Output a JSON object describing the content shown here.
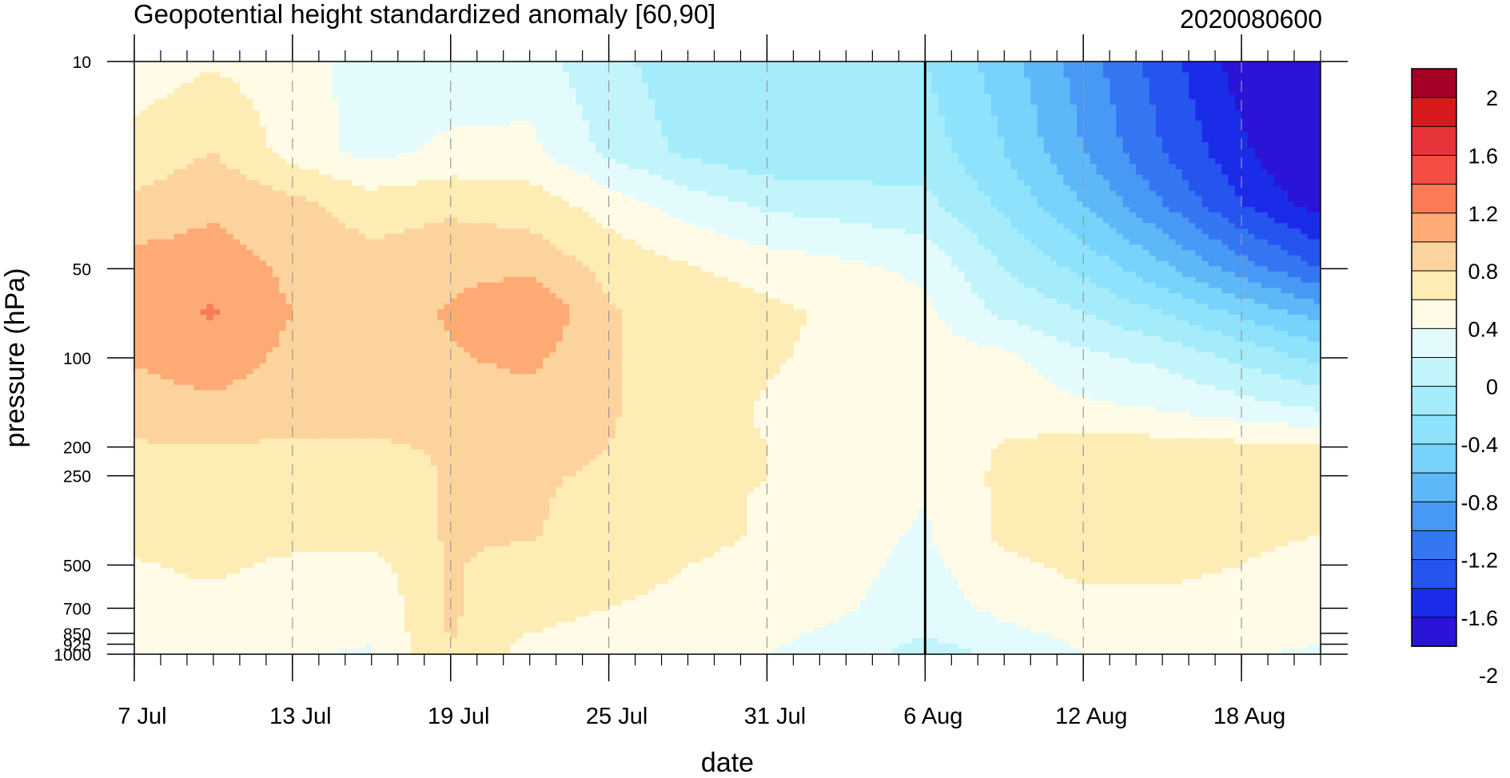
{
  "chart_data": {
    "type": "heatmap",
    "title": "Geopotential height standardized anomaly [60,90]",
    "init_label": "2020080600",
    "xlabel": "date",
    "ylabel": "pressure (hPa)",
    "x_tick_labels": [
      "7 Jul",
      "13 Jul",
      "19 Jul",
      "25 Jul",
      "31 Jul",
      "6 Aug",
      "12 Aug",
      "18 Aug"
    ],
    "x_range": [
      "7 Jul",
      "21 Aug"
    ],
    "y_tick_labels": [
      "10",
      "50",
      "100",
      "200",
      "250",
      "500",
      "700",
      "850",
      "925",
      "1000"
    ],
    "y_scale": "log",
    "y_range": [
      1000,
      10
    ],
    "vertical_line": "6 Aug",
    "colorbar": {
      "labels": [
        "2",
        "1.6",
        "1.2",
        "0.8",
        "0.4",
        "0",
        "-0.4",
        "-0.8",
        "-1.2",
        "-1.6",
        "-2"
      ],
      "colors": [
        "#a50026",
        "#d7191c",
        "#e8333a",
        "#f54c44",
        "#fb7b56",
        "#fdaa74",
        "#fdd39d",
        "#fdecb4",
        "#fffbe6",
        "#e3fbfd",
        "#c2f4fb",
        "#a4ecfb",
        "#8ee2fc",
        "#77d2fc",
        "#5eb8f8",
        "#4898f5",
        "#3576f2",
        "#2554ee",
        "#1b2ce8",
        "#2a14d6"
      ]
    },
    "levels": [
      -2.2,
      -2.0,
      -1.8,
      -1.6,
      -1.4,
      -1.2,
      -1.0,
      -0.8,
      -0.6,
      -0.4,
      -0.2,
      0,
      0.2,
      0.4,
      0.6,
      0.8
    ],
    "fill_colors": [
      "#2a14d6",
      "#1b2ce8",
      "#2554ee",
      "#3576f2",
      "#4898f5",
      "#5eb8f8",
      "#77d2fc",
      "#8ee2fc",
      "#a4ecfb",
      "#c2f4fb",
      "#e3fbfd",
      "#fffbe6",
      "#fdecb4",
      "#fdd39d",
      "#fdaa74",
      "#fb7b56"
    ],
    "grid": {
      "times": [
        "7 Jul",
        "10 Jul",
        "13 Jul",
        "16 Jul",
        "19 Jul",
        "22 Jul",
        "25 Jul",
        "28 Jul",
        "31 Jul",
        "3 Aug",
        "6 Aug",
        "9 Aug",
        "12 Aug",
        "15 Aug",
        "18 Aug",
        "21 Aug"
      ],
      "pressures": [
        10,
        20,
        30,
        50,
        70,
        100,
        150,
        200,
        250,
        300,
        400,
        500,
        700,
        850,
        925,
        1000
      ],
      "values": [
        [
          0.1,
          0.18,
          0.1,
          -0.1,
          -0.15,
          -0.1,
          -0.35,
          -0.5,
          -0.55,
          -0.6,
          -0.6,
          -0.9,
          -1.3,
          -1.7,
          -2.1,
          -2.4
        ],
        [
          0.25,
          0.4,
          0.12,
          -0.08,
          0.05,
          0.05,
          -0.25,
          -0.45,
          -0.55,
          -0.55,
          -0.5,
          -0.8,
          -1.2,
          -1.6,
          -1.95,
          -2.3
        ],
        [
          0.45,
          0.55,
          0.45,
          0.3,
          0.35,
          0.3,
          0.1,
          -0.1,
          -0.25,
          -0.3,
          -0.35,
          -0.65,
          -1.0,
          -1.4,
          -1.8,
          -2.1
        ],
        [
          0.68,
          0.72,
          0.55,
          0.48,
          0.55,
          0.55,
          0.35,
          0.22,
          0.12,
          0.05,
          -0.05,
          -0.4,
          -0.65,
          -0.95,
          -1.3,
          -1.6
        ],
        [
          0.72,
          0.82,
          0.6,
          0.5,
          0.62,
          0.8,
          0.42,
          0.32,
          0.25,
          0.15,
          0.05,
          -0.25,
          -0.4,
          -0.6,
          -0.85,
          -1.1
        ],
        [
          0.62,
          0.7,
          0.55,
          0.5,
          0.58,
          0.65,
          0.42,
          0.3,
          0.22,
          0.15,
          0.08,
          0.05,
          -0.15,
          -0.25,
          -0.45,
          -0.65
        ],
        [
          0.5,
          0.55,
          0.48,
          0.45,
          0.5,
          0.5,
          0.42,
          0.28,
          0.18,
          0.1,
          0.08,
          0.1,
          0.05,
          0.0,
          -0.1,
          -0.2
        ],
        [
          0.38,
          0.38,
          0.38,
          0.38,
          0.42,
          0.45,
          0.4,
          0.28,
          0.2,
          0.15,
          0.05,
          0.22,
          0.3,
          0.28,
          0.25,
          0.22
        ],
        [
          0.3,
          0.3,
          0.3,
          0.3,
          0.42,
          0.42,
          0.38,
          0.28,
          0.2,
          0.15,
          0.02,
          0.25,
          0.32,
          0.3,
          0.28,
          0.25
        ],
        [
          0.28,
          0.28,
          0.28,
          0.28,
          0.42,
          0.42,
          0.35,
          0.25,
          0.18,
          0.1,
          0.0,
          0.25,
          0.3,
          0.3,
          0.28,
          0.25
        ],
        [
          0.25,
          0.28,
          0.28,
          0.28,
          0.42,
          0.42,
          0.3,
          0.25,
          0.18,
          0.05,
          -0.02,
          0.25,
          0.3,
          0.3,
          0.25,
          0.2
        ],
        [
          0.18,
          0.25,
          0.15,
          0.12,
          0.42,
          0.32,
          0.28,
          0.2,
          0.15,
          0.05,
          -0.05,
          0.15,
          0.25,
          0.25,
          0.2,
          0.1
        ],
        [
          0.1,
          0.12,
          0.08,
          0.05,
          0.42,
          0.28,
          0.2,
          0.15,
          0.1,
          0.02,
          -0.1,
          0.05,
          0.15,
          0.15,
          0.1,
          0.05
        ],
        [
          0.05,
          0.05,
          0.05,
          0.02,
          0.42,
          0.2,
          0.12,
          0.1,
          0.05,
          -0.05,
          -0.18,
          -0.05,
          0.05,
          0.1,
          0.08,
          0.03
        ],
        [
          0.02,
          0.03,
          0.03,
          0.0,
          0.4,
          0.15,
          0.08,
          0.05,
          0.02,
          -0.08,
          -0.25,
          -0.1,
          0.02,
          0.08,
          0.05,
          0.0
        ],
        [
          0.0,
          0.02,
          0.02,
          -0.02,
          0.38,
          0.12,
          0.05,
          0.03,
          0.0,
          -0.1,
          -0.3,
          -0.15,
          0.0,
          0.05,
          0.03,
          -0.05
        ]
      ]
    }
  }
}
